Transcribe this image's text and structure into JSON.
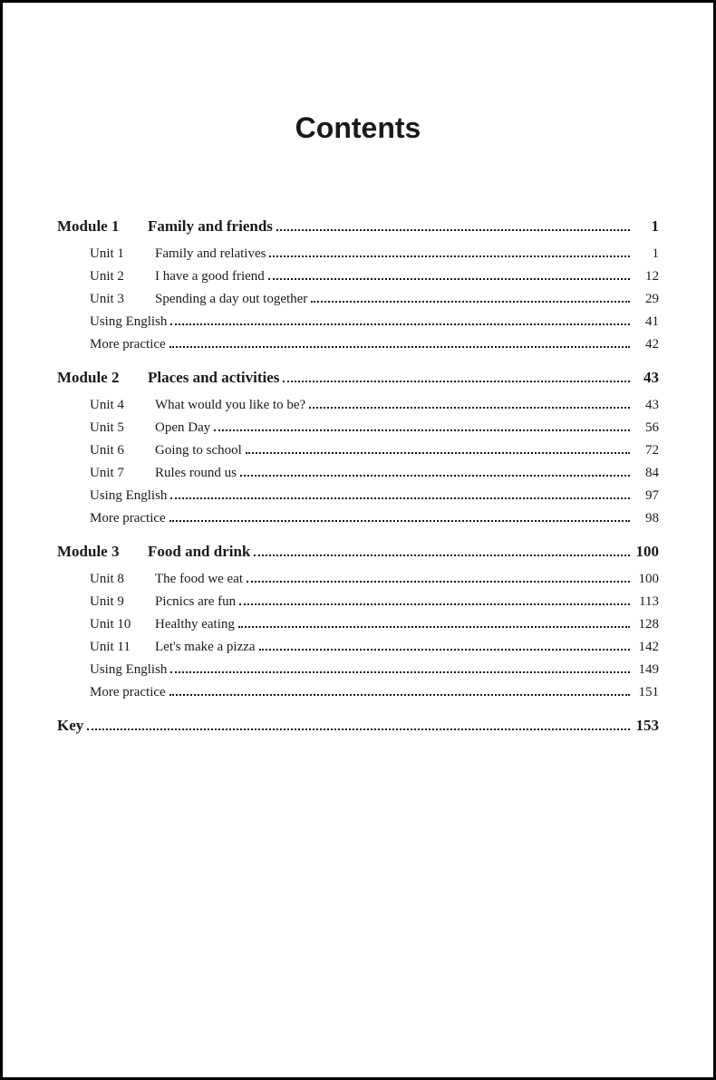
{
  "title": "Contents",
  "modules": [
    {
      "label": "Module 1",
      "title": "Family and friends",
      "page": "1",
      "units": [
        {
          "label": "Unit 1",
          "title": "Family and relatives",
          "page": "1"
        },
        {
          "label": "Unit 2",
          "title": "I have a good friend",
          "page": "12"
        },
        {
          "label": "Unit 3",
          "title": "Spending a day out together",
          "page": "29"
        }
      ],
      "extras": [
        {
          "title": "Using English",
          "page": "41"
        },
        {
          "title": "More practice",
          "page": "42"
        }
      ]
    },
    {
      "label": "Module 2",
      "title": "Places and activities",
      "page": "43",
      "units": [
        {
          "label": "Unit 4",
          "title": "What would you like to be?",
          "page": "43"
        },
        {
          "label": "Unit 5",
          "title": "Open Day",
          "page": "56"
        },
        {
          "label": "Unit 6",
          "title": "Going to school",
          "page": "72"
        },
        {
          "label": "Unit 7",
          "title": "Rules round us",
          "page": "84"
        }
      ],
      "extras": [
        {
          "title": "Using English",
          "page": "97"
        },
        {
          "title": "More practice",
          "page": "98"
        }
      ]
    },
    {
      "label": "Module 3",
      "title": "Food and drink",
      "page": "100",
      "units": [
        {
          "label": "Unit 8",
          "title": "The food we eat",
          "page": "100"
        },
        {
          "label": "Unit 9",
          "title": "Picnics are fun",
          "page": "113"
        },
        {
          "label": "Unit 10",
          "title": "Healthy eating",
          "page": "128"
        },
        {
          "label": "Unit 11",
          "title": "Let's make a pizza",
          "page": "142"
        }
      ],
      "extras": [
        {
          "title": "Using English",
          "page": "149"
        },
        {
          "title": "More practice",
          "page": "151"
        }
      ]
    }
  ],
  "key": {
    "label": "Key",
    "page": "153"
  }
}
